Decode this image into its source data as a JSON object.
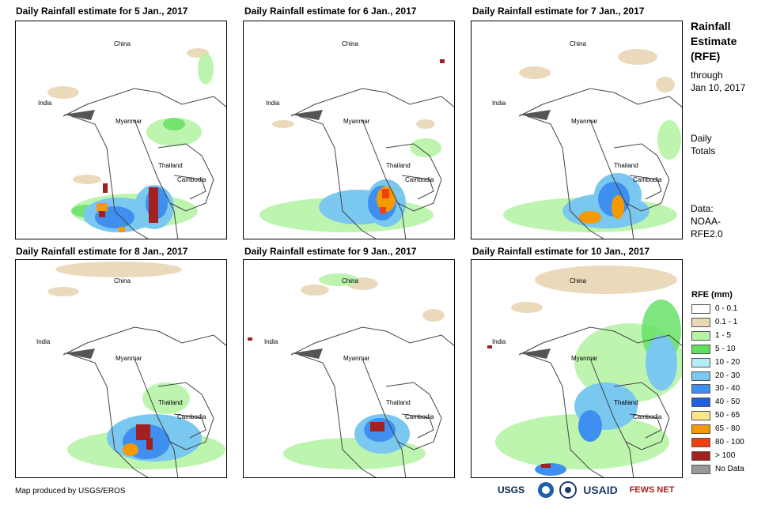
{
  "panels": [
    {
      "title": "Daily Rainfall estimate for 5 Jan., 2017"
    },
    {
      "title": "Daily Rainfall estimate for 6 Jan., 2017"
    },
    {
      "title": "Daily Rainfall estimate for 7 Jan., 2017"
    },
    {
      "title": "Daily Rainfall estimate for 8 Jan., 2017"
    },
    {
      "title": "Daily Rainfall estimate for 9 Jan., 2017"
    },
    {
      "title": "Daily Rainfall estimate for 10 Jan., 2017"
    }
  ],
  "map_labels": {
    "china": "China",
    "india": "India",
    "myanmar": "Myanmar",
    "thailand": "Thailand",
    "cambodia": "Cambodia"
  },
  "side": {
    "title_line1": "Rainfall",
    "title_line2": "Estimate",
    "title_line3": "(RFE)",
    "through": "through",
    "date": "Jan 10, 2017",
    "daily": "Daily",
    "totals": "Totals",
    "data_label": "Data:",
    "source1": "NOAA-",
    "source2": "RFE2.0"
  },
  "legend": {
    "title": "RFE (mm)",
    "items": [
      {
        "label": "0 - 0.1",
        "color": "#ffffff"
      },
      {
        "label": "0.1 - 1",
        "color": "#e8d6b4"
      },
      {
        "label": "1 - 5",
        "color": "#b6f3a6"
      },
      {
        "label": "5 - 10",
        "color": "#5fe05f"
      },
      {
        "label": "10 - 20",
        "color": "#b4eef8"
      },
      {
        "label": "20 - 30",
        "color": "#7ac7f0"
      },
      {
        "label": "30 - 40",
        "color": "#3e8ff0"
      },
      {
        "label": "40 - 50",
        "color": "#1f5fe0"
      },
      {
        "label": "50 - 65",
        "color": "#fde68a"
      },
      {
        "label": "65 - 80",
        "color": "#f59a00"
      },
      {
        "label": "80 - 100",
        "color": "#f04010"
      },
      {
        "label": "> 100",
        "color": "#a32020"
      },
      {
        "label": "No Data",
        "color": "#999999"
      }
    ]
  },
  "footer": {
    "credit": "Map produced by USGS/EROS"
  },
  "logos": {
    "usgs": "USGS",
    "usaid": "USAID",
    "fewsnet": "FEWS NET"
  }
}
